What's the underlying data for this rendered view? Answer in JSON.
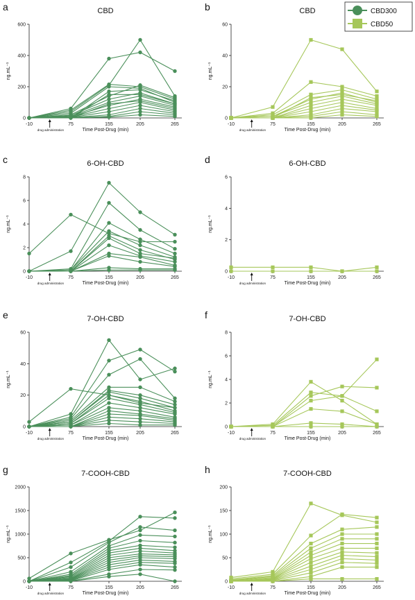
{
  "colors": {
    "CBD300": "#4a8f5a",
    "CBD50": "#a6c75a"
  },
  "legend": {
    "placement": "top-right",
    "entries": [
      {
        "name": "CBD300",
        "marker": "circle"
      },
      {
        "name": "CBD50",
        "marker": "square"
      }
    ]
  },
  "chart_data": [
    {
      "label": "a",
      "type": "line",
      "title": "CBD",
      "series": "CBD300",
      "xlabel": "Time Post-Drug (min)",
      "ylabel": "ng.mL⁻¹",
      "x": [
        -10,
        75,
        155,
        205,
        265
      ],
      "xticks": [
        "-10",
        "75",
        "155",
        "205",
        "265"
      ],
      "ylim": [
        0,
        600
      ],
      "yticks": [
        0,
        200,
        400,
        600
      ],
      "annotation": "drug administration",
      "subjects": [
        [
          0,
          60,
          380,
          420,
          300
        ],
        [
          0,
          40,
          210,
          500,
          140
        ],
        [
          0,
          50,
          215,
          200,
          120
        ],
        [
          0,
          30,
          200,
          190,
          100
        ],
        [
          0,
          20,
          140,
          210,
          130
        ],
        [
          0,
          15,
          120,
          160,
          90
        ],
        [
          0,
          10,
          100,
          140,
          80
        ],
        [
          0,
          8,
          80,
          120,
          70
        ],
        [
          0,
          5,
          60,
          100,
          50
        ],
        [
          0,
          3,
          40,
          80,
          40
        ],
        [
          0,
          2,
          20,
          60,
          30
        ],
        [
          0,
          1,
          10,
          40,
          20
        ],
        [
          0,
          0,
          170,
          180,
          110
        ],
        [
          0,
          0,
          150,
          150,
          90
        ],
        [
          0,
          0,
          90,
          110,
          60
        ],
        [
          0,
          0,
          5,
          20,
          10
        ]
      ]
    },
    {
      "label": "b",
      "type": "line",
      "title": "CBD",
      "series": "CBD50",
      "xlabel": "Time Post-Drug (min)",
      "ylabel": "ng.mL⁻¹",
      "x": [
        -10,
        75,
        155,
        205,
        265
      ],
      "xticks": [
        "-10",
        "75",
        "155",
        "205",
        "265"
      ],
      "ylim": [
        0,
        60
      ],
      "yticks": [
        0,
        20,
        40,
        60
      ],
      "annotation": "drug administration",
      "subjects": [
        [
          0,
          7,
          50,
          44,
          17
        ],
        [
          0,
          3,
          23,
          20,
          14
        ],
        [
          0,
          2,
          15,
          18,
          12
        ],
        [
          0,
          1,
          12,
          16,
          10
        ],
        [
          0,
          1,
          10,
          14,
          9
        ],
        [
          0,
          0,
          8,
          12,
          8
        ],
        [
          0,
          0,
          6,
          10,
          6
        ],
        [
          0,
          0,
          4,
          8,
          5
        ],
        [
          0,
          0,
          2,
          6,
          4
        ],
        [
          0,
          0,
          1,
          4,
          2
        ],
        [
          0,
          0,
          0,
          2,
          1
        ],
        [
          0,
          0,
          13,
          15,
          11
        ]
      ]
    },
    {
      "label": "c",
      "type": "line",
      "title": "6-OH-CBD",
      "series": "CBD300",
      "xlabel": "Time Post-Drug (min)",
      "ylabel": "ng.mL⁻¹",
      "x": [
        -10,
        75,
        155,
        205,
        265
      ],
      "xticks": [
        "-10",
        "75",
        "155",
        "205",
        "265"
      ],
      "ylim": [
        0,
        8
      ],
      "yticks": [
        0,
        2,
        4,
        6,
        8
      ],
      "annotation": "drug administration",
      "subjects": [
        [
          1.5,
          4.8,
          3.2,
          2.5,
          2.5
        ],
        [
          0,
          1.7,
          7.5,
          5.0,
          3.1
        ],
        [
          0,
          0.2,
          5.8,
          3.5,
          1.9
        ],
        [
          0,
          0.1,
          4.1,
          2.7,
          1.5
        ],
        [
          0,
          0.1,
          3.4,
          2.2,
          1.2
        ],
        [
          0,
          0,
          3.0,
          1.8,
          1.0
        ],
        [
          0,
          0,
          2.8,
          1.5,
          1.1
        ],
        [
          0,
          0,
          2.2,
          1.3,
          0.8
        ],
        [
          0,
          0,
          1.5,
          1.2,
          0.5
        ],
        [
          0,
          0,
          1.3,
          0.8,
          0.4
        ],
        [
          0,
          0,
          0.3,
          0.2,
          0.2
        ],
        [
          0,
          0,
          0.1,
          0.1,
          0.1
        ]
      ]
    },
    {
      "label": "d",
      "type": "line",
      "title": "6-OH-CBD",
      "series": "CBD50",
      "xlabel": "Time Post-Drug (min)",
      "ylabel": "ng.mL⁻¹",
      "x": [
        -10,
        75,
        155,
        205,
        265
      ],
      "xticks": [
        "-10",
        "75",
        "155",
        "205",
        "265"
      ],
      "ylim": [
        0,
        6
      ],
      "yticks": [
        0,
        2,
        4,
        6
      ],
      "annotation": "drug administration",
      "subjects": [
        [
          0.25,
          0.25,
          0.25,
          0,
          0.25
        ],
        [
          0,
          0,
          0,
          0,
          0
        ]
      ]
    },
    {
      "label": "e",
      "type": "line",
      "title": "7-OH-CBD",
      "series": "CBD300",
      "xlabel": "Time Post-Drug (min)",
      "ylabel": "ng.mL⁻¹",
      "x": [
        -10,
        75,
        155,
        205,
        265
      ],
      "xticks": [
        "-10",
        "75",
        "155",
        "205",
        "265"
      ],
      "ylim": [
        0,
        60
      ],
      "yticks": [
        0,
        20,
        40,
        60
      ],
      "annotation": "drug administration",
      "subjects": [
        [
          3,
          24,
          20,
          15,
          12
        ],
        [
          0,
          8,
          55,
          30,
          37
        ],
        [
          0,
          6,
          42,
          49,
          35
        ],
        [
          0,
          5,
          33,
          43,
          18
        ],
        [
          0,
          4,
          25,
          25,
          16
        ],
        [
          0,
          3,
          23,
          20,
          14
        ],
        [
          0,
          3,
          22,
          18,
          12
        ],
        [
          0,
          2,
          20,
          16,
          10
        ],
        [
          0,
          2,
          18,
          14,
          9
        ],
        [
          0,
          1,
          15,
          12,
          8
        ],
        [
          0,
          1,
          12,
          10,
          6
        ],
        [
          0,
          0,
          10,
          8,
          5
        ],
        [
          0,
          0,
          8,
          7,
          4
        ],
        [
          0,
          0,
          6,
          5,
          3
        ],
        [
          0,
          0,
          4,
          3,
          2
        ],
        [
          0,
          0,
          2,
          1,
          1
        ]
      ]
    },
    {
      "label": "f",
      "type": "line",
      "title": "7-OH-CBD",
      "series": "CBD50",
      "xlabel": "Time Post-Drug (min)",
      "ylabel": "ng.mL⁻¹",
      "x": [
        -10,
        75,
        155,
        205,
        265
      ],
      "xticks": [
        "-10",
        "75",
        "155",
        "205",
        "265"
      ],
      "ylim": [
        0,
        8
      ],
      "yticks": [
        0,
        2,
        4,
        6,
        8
      ],
      "annotation": "drug administration",
      "subjects": [
        [
          0,
          0.2,
          3.8,
          2.2,
          0.2
        ],
        [
          0,
          0.1,
          2.9,
          2.6,
          5.7
        ],
        [
          0,
          0,
          2.6,
          3.4,
          3.3
        ],
        [
          0,
          0,
          2.2,
          2.6,
          1.3
        ],
        [
          0,
          0,
          1.5,
          1.3,
          0.2
        ],
        [
          0,
          0,
          0.3,
          0.2,
          0
        ],
        [
          0,
          0,
          0,
          0,
          0
        ]
      ]
    },
    {
      "label": "g",
      "type": "line",
      "title": "7-COOH-CBD",
      "series": "CBD300",
      "xlabel": "Time Post-Drug (min)",
      "ylabel": "ng.mL⁻¹",
      "x": [
        -10,
        75,
        155,
        205,
        265
      ],
      "xticks": [
        "-10",
        "75",
        "155",
        "205",
        "265"
      ],
      "ylim": [
        0,
        2000
      ],
      "yticks": [
        0,
        500,
        1000,
        1500,
        2000
      ],
      "annotation": "drug administration",
      "subjects": [
        [
          60,
          590,
          880,
          1080,
          1460
        ],
        [
          0,
          400,
          850,
          1370,
          1340
        ],
        [
          0,
          300,
          820,
          1150,
          1080
        ],
        [
          0,
          200,
          750,
          980,
          950
        ],
        [
          0,
          150,
          700,
          860,
          820
        ],
        [
          0,
          120,
          650,
          760,
          720
        ],
        [
          0,
          100,
          600,
          700,
          650
        ],
        [
          0,
          80,
          550,
          640,
          600
        ],
        [
          0,
          60,
          500,
          580,
          560
        ],
        [
          0,
          50,
          450,
          540,
          520
        ],
        [
          0,
          40,
          400,
          500,
          480
        ],
        [
          0,
          30,
          350,
          450,
          420
        ],
        [
          0,
          20,
          300,
          400,
          380
        ],
        [
          0,
          10,
          250,
          350,
          300
        ],
        [
          0,
          5,
          150,
          250,
          240
        ],
        [
          0,
          0,
          100,
          150,
          0
        ]
      ]
    },
    {
      "label": "h",
      "type": "line",
      "title": "7-COOH-CBD",
      "series": "CBD50",
      "xlabel": "Time Post-Drug (min)",
      "ylabel": "ng.mL⁻¹",
      "x": [
        -10,
        75,
        155,
        205,
        265
      ],
      "xticks": [
        "-10",
        "75",
        "155",
        "205",
        "265"
      ],
      "ylim": [
        0,
        200
      ],
      "yticks": [
        0,
        50,
        100,
        150,
        200
      ],
      "annotation": "drug administration",
      "subjects": [
        [
          8,
          20,
          165,
          140,
          125
        ],
        [
          5,
          15,
          97,
          142,
          135
        ],
        [
          3,
          12,
          80,
          110,
          115
        ],
        [
          2,
          10,
          70,
          100,
          100
        ],
        [
          1,
          8,
          62,
          90,
          90
        ],
        [
          0,
          6,
          55,
          80,
          80
        ],
        [
          0,
          5,
          48,
          70,
          70
        ],
        [
          0,
          4,
          40,
          62,
          60
        ],
        [
          0,
          3,
          32,
          55,
          52
        ],
        [
          0,
          2,
          25,
          48,
          45
        ],
        [
          0,
          1,
          18,
          40,
          38
        ],
        [
          0,
          0,
          10,
          30,
          30
        ],
        [
          0,
          0,
          5,
          5,
          5
        ]
      ]
    }
  ]
}
